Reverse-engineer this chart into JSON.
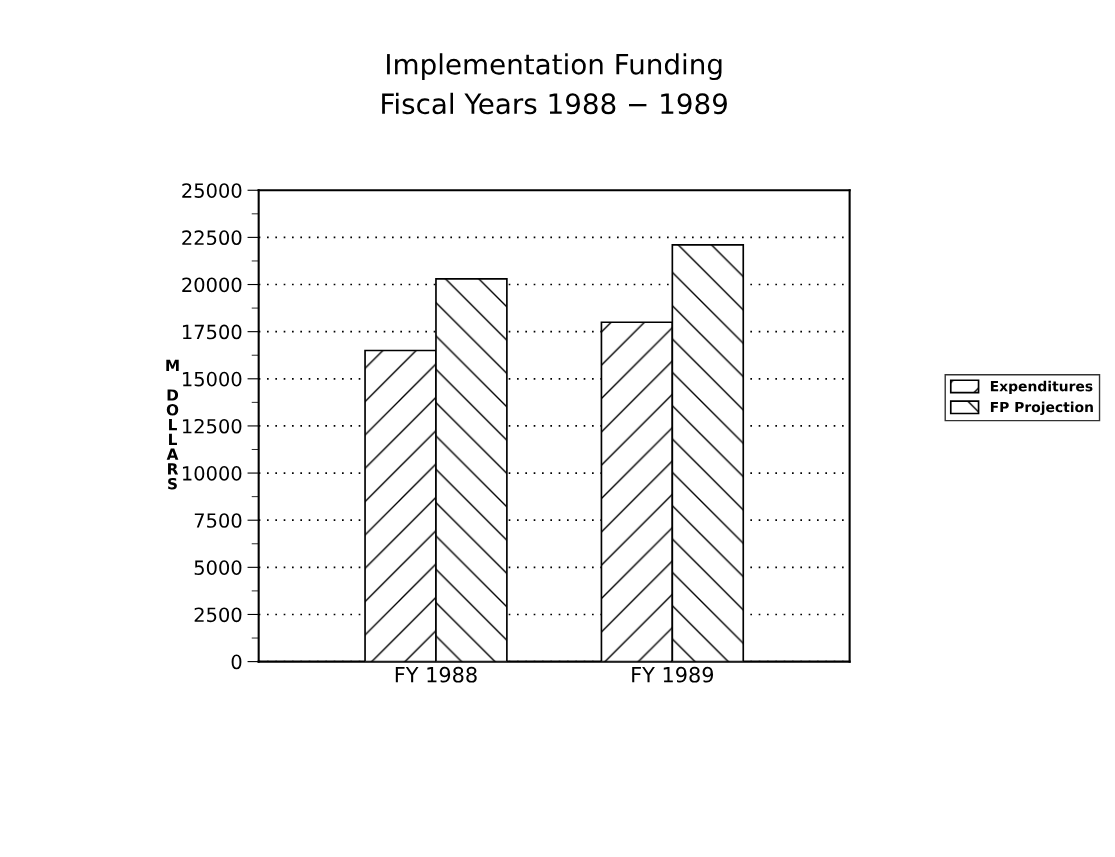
{
  "chart_data": {
    "type": "bar",
    "title": "Implementation Funding\nFiscal Years 1988 − 1989",
    "ylabel": "M DOLLARS",
    "categories": [
      "FY 1988",
      "FY 1989"
    ],
    "series": [
      {
        "name": "Expenditures",
        "color": "#000000",
        "values": [
          16500,
          18000
        ]
      },
      {
        "name": "FP Projection",
        "color": "#000000",
        "values": [
          20300,
          22100
        ]
      }
    ],
    "ylim": [
      0,
      25000
    ],
    "yticks": [
      0,
      2500,
      5000,
      7500,
      10000,
      12500,
      15000,
      17500,
      20000,
      22500,
      25000
    ],
    "grid": "y",
    "legend": "right"
  }
}
